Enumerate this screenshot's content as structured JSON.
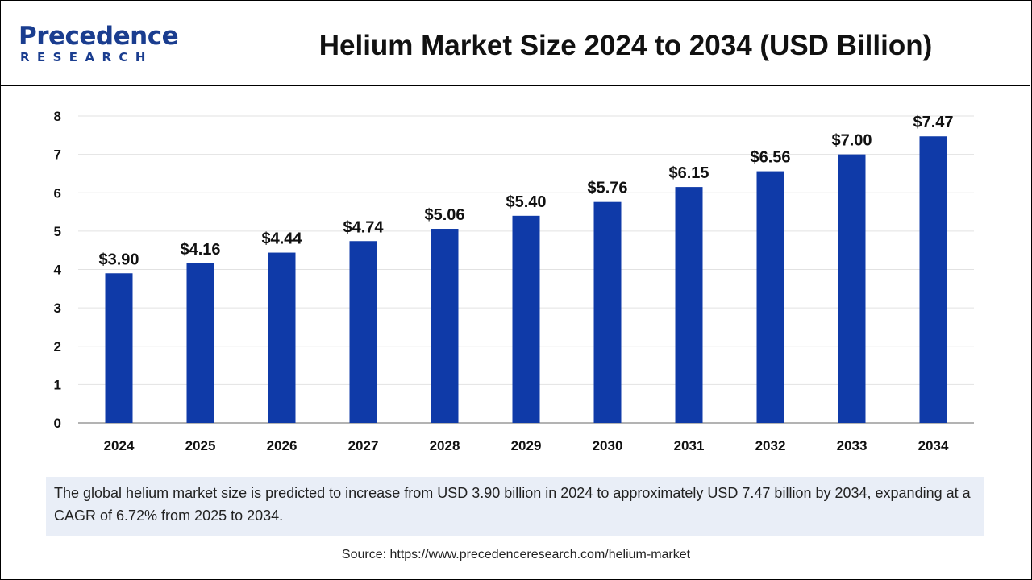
{
  "logo": {
    "name": "Precedence",
    "sub": "RESEARCH"
  },
  "colors": {
    "bar": "#0f3aa8",
    "logo": "#1a3d8f",
    "caption_bg": "#e9eef7"
  },
  "chart_data": {
    "type": "bar",
    "title": "Helium Market Size 2024 to 2034 (USD Billion)",
    "categories": [
      "2024",
      "2025",
      "2026",
      "2027",
      "2028",
      "2029",
      "2030",
      "2031",
      "2032",
      "2033",
      "2034"
    ],
    "values": [
      3.9,
      4.16,
      4.44,
      4.74,
      5.06,
      5.4,
      5.76,
      6.15,
      6.56,
      7.0,
      7.47
    ],
    "value_labels": [
      "$3.90",
      "$4.16",
      "$4.44",
      "$4.74",
      "$5.06",
      "$5.40",
      "$5.76",
      "$6.15",
      "$6.56",
      "$7.00",
      "$7.47"
    ],
    "yticks": [
      0,
      1,
      2,
      3,
      4,
      5,
      6,
      7,
      8
    ],
    "ylim": [
      0,
      8
    ],
    "grid": true,
    "xlabel": "",
    "ylabel": ""
  },
  "caption": "The global helium market size is predicted to increase from USD 3.90 billion in 2024 to approximately USD 7.47 billion by 2034, expanding at a CAGR of 6.72% from 2025 to 2034.",
  "source": "Source: https://www.precedenceresearch.com/helium-market"
}
